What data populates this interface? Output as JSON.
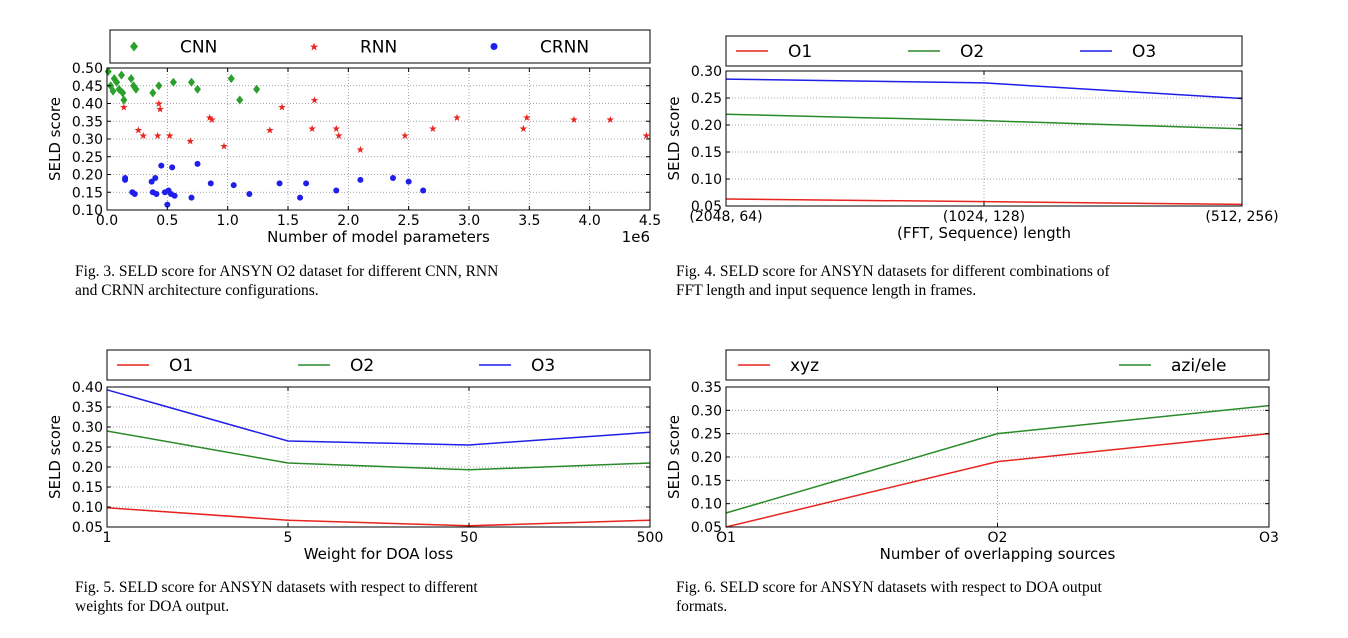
{
  "captions": [
    {
      "lines": [
        "Fig. 3.  SELD score for ANSYN O2 dataset for different CNN, RNN",
        "and CRNN architecture configurations."
      ]
    },
    {
      "lines": [
        "Fig. 4.  SELD score for ANSYN datasets for different combinations of",
        "FFT length and input sequence length in frames."
      ]
    },
    {
      "lines": [
        "Fig. 5.  SELD score for ANSYN datasets with respect to different",
        "weights for DOA output."
      ]
    },
    {
      "lines": [
        "Fig. 6.  SELD score for ANSYN datasets with respect to DOA output",
        "formats."
      ]
    }
  ],
  "chart_data": [
    {
      "type": "scatter",
      "figure": "Fig. 3",
      "xlabel": "Number of model parameters",
      "ylabel": "SELD score",
      "x_multiplier": "1e6",
      "xlim": [
        0.0,
        4.5
      ],
      "ylim": [
        0.1,
        0.5
      ],
      "xticks": [
        "0.0",
        "0.5",
        "1.0",
        "1.5",
        "2.0",
        "2.5",
        "3.0",
        "3.5",
        "4.0",
        "4.5"
      ],
      "yticks": [
        "0.10",
        "0.15",
        "0.20",
        "0.25",
        "0.30",
        "0.35",
        "0.40",
        "0.45",
        "0.50"
      ],
      "legend_position": "top, outside",
      "series": [
        {
          "name": "CNN",
          "color": "#2ca02c",
          "marker": "diamond",
          "points": [
            [
              0.01,
              0.49
            ],
            [
              0.03,
              0.45
            ],
            [
              0.05,
              0.435
            ],
            [
              0.06,
              0.47
            ],
            [
              0.08,
              0.46
            ],
            [
              0.1,
              0.44
            ],
            [
              0.12,
              0.48
            ],
            [
              0.13,
              0.43
            ],
            [
              0.14,
              0.41
            ],
            [
              0.2,
              0.47
            ],
            [
              0.22,
              0.45
            ],
            [
              0.24,
              0.44
            ],
            [
              0.38,
              0.43
            ],
            [
              0.43,
              0.45
            ],
            [
              0.55,
              0.46
            ],
            [
              0.7,
              0.46
            ],
            [
              0.75,
              0.44
            ],
            [
              1.03,
              0.47
            ],
            [
              1.1,
              0.41
            ],
            [
              1.24,
              0.44
            ]
          ]
        },
        {
          "name": "RNN",
          "color": "#e8241f",
          "marker": "star",
          "points": [
            [
              0.14,
              0.39
            ],
            [
              0.26,
              0.325
            ],
            [
              0.3,
              0.31
            ],
            [
              0.42,
              0.31
            ],
            [
              0.43,
              0.4
            ],
            [
              0.44,
              0.385
            ],
            [
              0.52,
              0.31
            ],
            [
              0.69,
              0.295
            ],
            [
              0.85,
              0.36
            ],
            [
              0.87,
              0.355
            ],
            [
              0.97,
              0.28
            ],
            [
              1.35,
              0.325
            ],
            [
              1.45,
              0.39
            ],
            [
              1.7,
              0.33
            ],
            [
              1.72,
              0.41
            ],
            [
              1.9,
              0.33
            ],
            [
              1.92,
              0.31
            ],
            [
              2.1,
              0.27
            ],
            [
              2.47,
              0.31
            ],
            [
              2.7,
              0.33
            ],
            [
              2.9,
              0.36
            ],
            [
              3.45,
              0.33
            ],
            [
              3.48,
              0.36
            ],
            [
              3.87,
              0.355
            ],
            [
              4.17,
              0.355
            ],
            [
              4.47,
              0.31
            ]
          ]
        },
        {
          "name": "CRNN",
          "color": "#1f1fe8",
          "marker": "circle",
          "points": [
            [
              0.15,
              0.19
            ],
            [
              0.15,
              0.185
            ],
            [
              0.21,
              0.15
            ],
            [
              0.23,
              0.145
            ],
            [
              0.37,
              0.18
            ],
            [
              0.38,
              0.15
            ],
            [
              0.4,
              0.19
            ],
            [
              0.41,
              0.145
            ],
            [
              0.45,
              0.225
            ],
            [
              0.48,
              0.15
            ],
            [
              0.5,
              0.115
            ],
            [
              0.51,
              0.155
            ],
            [
              0.53,
              0.145
            ],
            [
              0.54,
              0.22
            ],
            [
              0.56,
              0.14
            ],
            [
              0.7,
              0.135
            ],
            [
              0.75,
              0.23
            ],
            [
              0.86,
              0.175
            ],
            [
              1.05,
              0.17
            ],
            [
              1.18,
              0.145
            ],
            [
              1.43,
              0.175
            ],
            [
              1.6,
              0.135
            ],
            [
              1.65,
              0.175
            ],
            [
              1.9,
              0.155
            ],
            [
              2.1,
              0.185
            ],
            [
              2.37,
              0.19
            ],
            [
              2.5,
              0.18
            ],
            [
              2.62,
              0.155
            ]
          ]
        }
      ]
    },
    {
      "type": "line",
      "figure": "Fig. 4",
      "xlabel": "(FFT, Sequence) length",
      "ylabel": "SELD score",
      "categories": [
        "(2048, 64)",
        "(1024, 128)",
        "(512, 256)"
      ],
      "ylim": [
        0.05,
        0.3
      ],
      "yticks": [
        "0.05",
        "0.10",
        "0.15",
        "0.20",
        "0.25",
        "0.30"
      ],
      "legend_position": "top, outside",
      "series": [
        {
          "name": "O1",
          "color": "#e8241f",
          "values": [
            0.063,
            0.058,
            0.053
          ]
        },
        {
          "name": "O2",
          "color": "#2a8a2a",
          "values": [
            0.22,
            0.208,
            0.193
          ]
        },
        {
          "name": "O3",
          "color": "#1f1fe8",
          "values": [
            0.285,
            0.278,
            0.249
          ]
        }
      ]
    },
    {
      "type": "line",
      "figure": "Fig. 5",
      "xlabel": "Weight for DOA loss",
      "ylabel": "SELD score",
      "categories": [
        "1",
        "5",
        "50",
        "500"
      ],
      "ylim": [
        0.05,
        0.4
      ],
      "yticks": [
        "0.05",
        "0.10",
        "0.15",
        "0.20",
        "0.25",
        "0.30",
        "0.35",
        "0.40"
      ],
      "legend_position": "top, outside",
      "series": [
        {
          "name": "O1",
          "color": "#e8241f",
          "values": [
            0.098,
            0.067,
            0.053,
            0.067
          ]
        },
        {
          "name": "O2",
          "color": "#2a8a2a",
          "values": [
            0.29,
            0.21,
            0.193,
            0.21
          ]
        },
        {
          "name": "O3",
          "color": "#1f1fe8",
          "values": [
            0.393,
            0.265,
            0.255,
            0.287
          ]
        }
      ]
    },
    {
      "type": "line",
      "figure": "Fig. 6",
      "xlabel": "Number of overlapping sources",
      "ylabel": "SELD score",
      "categories": [
        "O1",
        "O2",
        "O3"
      ],
      "ylim": [
        0.05,
        0.35
      ],
      "yticks": [
        "0.05",
        "0.10",
        "0.15",
        "0.20",
        "0.25",
        "0.30",
        "0.35"
      ],
      "legend_position": "top, outside",
      "series": [
        {
          "name": "xyz",
          "color": "#e8241f",
          "values": [
            0.05,
            0.19,
            0.25
          ]
        },
        {
          "name": "azi/ele",
          "color": "#2a8a2a",
          "values": [
            0.08,
            0.25,
            0.31
          ]
        }
      ]
    }
  ]
}
